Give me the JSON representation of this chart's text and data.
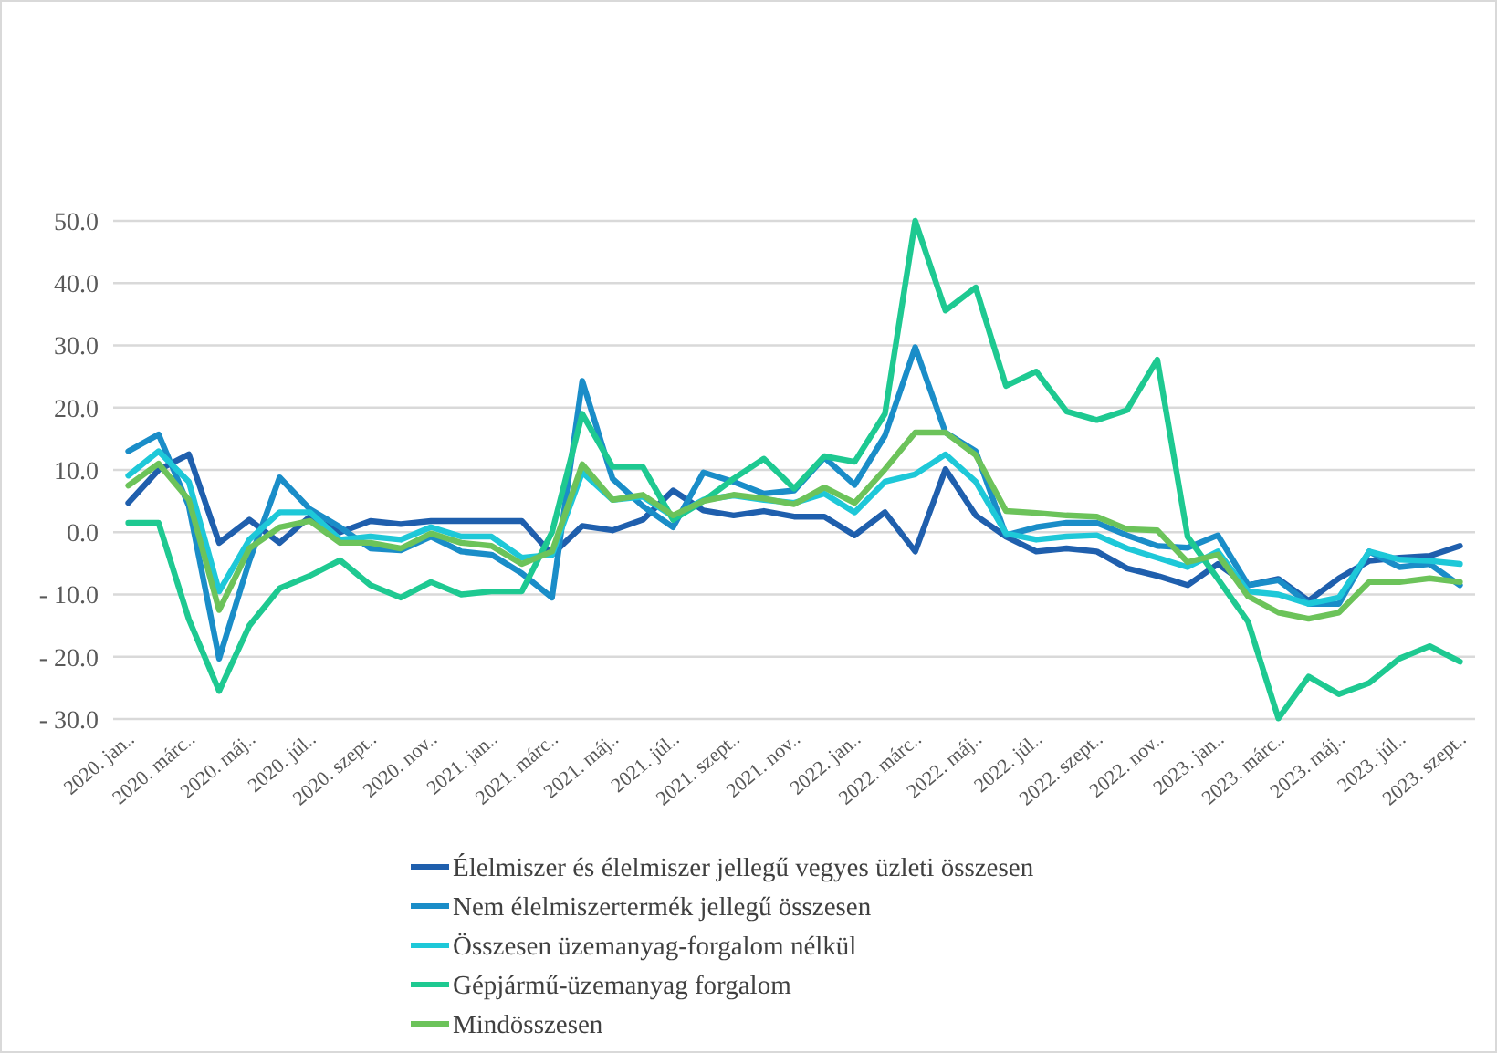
{
  "chart_data": {
    "type": "line",
    "categories": [
      "2020. jan..",
      null,
      "2020. márc..",
      null,
      "2020. máj..",
      null,
      "2020. júl..",
      null,
      "2020. szept..",
      null,
      "2020. nov..",
      null,
      "2021. jan..",
      null,
      "2021. márc..",
      null,
      "2021. máj..",
      null,
      "2021. júl..",
      null,
      "2021. szept..",
      null,
      "2021. nov..",
      null,
      "2022. jan..",
      null,
      "2022. márc..",
      null,
      "2022. máj..",
      null,
      "2022. júl..",
      null,
      "2022. szept..",
      null,
      "2022. nov..",
      null,
      "2023. jan..",
      null,
      "2023. márc..",
      null,
      "2023. máj..",
      null,
      "2023. júl..",
      null,
      "2023. szept.."
    ],
    "series": [
      {
        "name": "Élelmiszer és élelmiszer jellegű vegyes üzleti összesen",
        "color": "#1f5fad",
        "values": [
          4.7,
          10,
          12.5,
          -1.7,
          2,
          -1.7,
          2.5,
          0,
          1.8,
          1.3,
          1.8,
          1.8,
          1.8,
          1.8,
          -3.6,
          1,
          0.3,
          2,
          6.7,
          3.5,
          2.7,
          3.4,
          2.5,
          2.5,
          -0.5,
          3.2,
          -3.1,
          10.1,
          2.7,
          -0.7,
          -3.1,
          -2.6,
          -3.1,
          -5.8,
          -7,
          -8.5,
          -5.1,
          -8.5,
          -7.5,
          -11,
          -7.4,
          -4.6,
          -4.1,
          -3.8,
          -2.2
        ]
      },
      {
        "name": "Nem élelmiszertermék jellegű összesen",
        "color": "#1a8dc8",
        "values": [
          13,
          15.7,
          4.2,
          -20.3,
          -4.6,
          8.8,
          3.7,
          0.8,
          -2.6,
          -2.9,
          -0.7,
          -3.1,
          -3.6,
          -6.6,
          -10.5,
          24.3,
          8.6,
          4.2,
          0.8,
          9.6,
          8.1,
          6.2,
          6.7,
          12,
          7.6,
          15.5,
          29.7,
          16,
          13,
          -0.5,
          0.8,
          1.5,
          1.5,
          -0.5,
          -2.2,
          -2.5,
          -0.5,
          -8.5,
          -7.7,
          -11.5,
          -11.5,
          -3.1,
          -5.6,
          -5.1,
          -8.5
        ]
      },
      {
        "name": "Összesen üzemanyag-forgalom nélkül",
        "color": "#1ec8d8",
        "values": [
          9.1,
          13,
          8.1,
          -9.5,
          -1.2,
          3.2,
          3.2,
          -1.2,
          -0.7,
          -1.2,
          0.8,
          -0.7,
          -0.7,
          -4.1,
          -3.6,
          9.6,
          5.2,
          5.7,
          2.5,
          5.2,
          5.9,
          5.2,
          4.7,
          6.2,
          3.2,
          8.1,
          9.3,
          12.5,
          8.1,
          -0.2,
          -1.2,
          -0.7,
          -0.5,
          -2.6,
          -4.1,
          -5.6,
          -3.1,
          -9.5,
          -10,
          -11.5,
          -10.5,
          -3.1,
          -4.4,
          -4.6,
          -5.1
        ]
      },
      {
        "name": "Gépjármű-üzemanyag forgalom",
        "color": "#1ec991",
        "values": [
          1.5,
          1.5,
          -14,
          -25.5,
          -15,
          -9,
          -7,
          -4.5,
          -8.5,
          -10.5,
          -8,
          -10,
          -9.5,
          -9.5,
          0,
          19,
          10.5,
          10.5,
          2,
          5,
          8.6,
          11.8,
          7,
          12.2,
          11.3,
          19,
          50,
          35.6,
          39.3,
          23.5,
          25.8,
          19.4,
          18,
          19.6,
          27.7,
          -0.7,
          -7.5,
          -14.4,
          -29.9,
          -23.2,
          -26,
          -24.2,
          -20.3,
          -18.3,
          -20.8
        ]
      },
      {
        "name": "Mindösszesen",
        "color": "#6cc35a",
        "values": [
          7.5,
          11,
          5.2,
          -12.5,
          -2.6,
          0.8,
          1.8,
          -1.7,
          -1.7,
          -2.6,
          -0.2,
          -1.7,
          -2.2,
          -5.1,
          -3.1,
          10.9,
          5.2,
          6,
          2.7,
          5,
          6,
          5.4,
          4.5,
          7.2,
          4.7,
          10.1,
          16,
          16,
          12.4,
          3.4,
          3.1,
          2.7,
          2.5,
          0.5,
          0.3,
          -4.8,
          -3.6,
          -10.3,
          -12.9,
          -13.9,
          -12.9,
          -8,
          -8,
          -7.4,
          -8
        ]
      }
    ],
    "ylim": [
      -30,
      50
    ],
    "yticks": [
      {
        "value": -30,
        "label": "- 30.0"
      },
      {
        "value": -20,
        "label": "- 20.0"
      },
      {
        "value": -10,
        "label": "- 10.0"
      },
      {
        "value": 0,
        "label": "0.0"
      },
      {
        "value": 10,
        "label": "10.0"
      },
      {
        "value": 20,
        "label": "20.0"
      },
      {
        "value": 30,
        "label": "30.0"
      },
      {
        "value": 40,
        "label": "40.0"
      },
      {
        "value": 50,
        "label": "50.0"
      }
    ],
    "grid": "y",
    "legend": "bottom",
    "marker": "none",
    "line_style": "solid"
  }
}
